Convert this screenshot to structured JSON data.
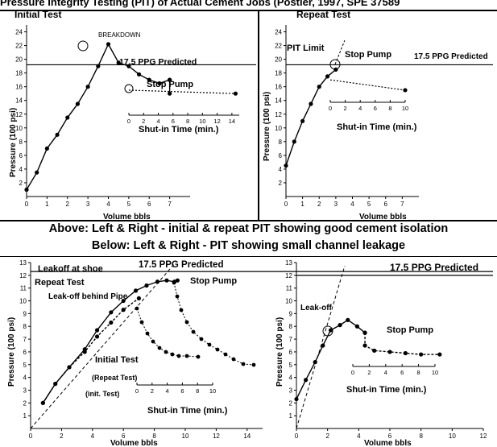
{
  "header": "Pressure Integrity Testing (PIT) of Actual Cement Jobs (Postler, 1997, SPE 37589",
  "captions": {
    "above": "Above: Left & Right - initial & repeat PIT showing good cement isolation",
    "below": "Below: Left & Right - PIT showing small channel leakage"
  },
  "chart_data": [
    {
      "id": "c1",
      "type": "line",
      "title": "Initial Test",
      "xlabel": "Volume bbls",
      "ylabel": "Pressure (100 psi)",
      "xlim": [
        0,
        8
      ],
      "ylim": [
        0,
        25
      ],
      "xticks": [
        0,
        1,
        2,
        3,
        4,
        5,
        6,
        7
      ],
      "yticks": [
        2,
        4,
        6,
        8,
        10,
        12,
        14,
        16,
        18,
        20,
        22,
        24
      ],
      "hline": {
        "y": 19.2,
        "label": "17.5 PPG Predicted"
      },
      "series": [
        {
          "x": [
            0,
            0.5,
            1,
            1.5,
            2,
            2.5,
            3,
            3.5,
            4,
            4.5,
            5,
            5.5,
            6,
            6.5,
            7
          ],
          "y": [
            1,
            3.5,
            7,
            9,
            11.5,
            13.5,
            16,
            19,
            22.2,
            19.5,
            19,
            17.8,
            17,
            16.5,
            17
          ]
        },
        {
          "x": [
            7,
            7
          ],
          "y": [
            17,
            15
          ]
        }
      ],
      "annotations": [
        "BREAKDOWN",
        "Stop Pump"
      ],
      "inset": {
        "xlabel": "Shut-in Time (min.)",
        "xlim": [
          0,
          15
        ],
        "xticks": [
          0,
          2,
          4,
          6,
          8,
          10,
          12,
          14
        ],
        "series": [
          {
            "x": [
              0,
              14.5
            ],
            "y": [
              15.5,
              15
            ]
          }
        ]
      }
    },
    {
      "id": "c2",
      "type": "line",
      "title": "Repeat Test",
      "xlabel": "Volume bbls",
      "ylabel": "Pressure (100 psi)",
      "xlim": [
        0,
        8
      ],
      "ylim": [
        0,
        25
      ],
      "xticks": [
        0,
        1,
        2,
        3,
        4,
        5,
        6,
        7
      ],
      "yticks": [
        2,
        4,
        6,
        8,
        10,
        12,
        14,
        16,
        18,
        20,
        22,
        24
      ],
      "hline": {
        "y": 19.2,
        "label": "17.5 PPG Predicted"
      },
      "series": [
        {
          "x": [
            0,
            0.5,
            1,
            1.5,
            2,
            2.5,
            3
          ],
          "y": [
            4.5,
            8,
            11,
            13.5,
            16,
            17.5,
            18.5
          ]
        }
      ],
      "annotations": [
        "PIT Limit",
        "Stop Pump"
      ],
      "inset": {
        "xlabel": "Shut-in Time (min.)",
        "xlim": [
          0,
          10
        ],
        "xticks": [
          0,
          2,
          4,
          6,
          8,
          10
        ],
        "series": [
          {
            "x": [
              0,
              10
            ],
            "y": [
              17,
              15.5
            ]
          }
        ]
      }
    },
    {
      "id": "c3",
      "type": "line",
      "xlabel": "Volume bbls",
      "ylabel": "Pressure (100 psi)",
      "xlim": [
        0,
        15
      ],
      "ylim": [
        0,
        13
      ],
      "xticks": [
        0,
        2,
        4,
        6,
        8,
        10,
        12,
        14
      ],
      "yticks": [
        1,
        2,
        3,
        4,
        5,
        6,
        7,
        8,
        9,
        10,
        11,
        12,
        13
      ],
      "hline": {
        "y": 12.3,
        "label": "17.5 PPG Predicted"
      },
      "series": [
        {
          "name": "Repeat Test",
          "x": [
            0.8,
            1.6,
            2.5,
            3.5,
            4.3,
            5.2,
            6,
            6.8,
            7.5,
            8.2,
            8.8,
            9.3,
            9.5
          ],
          "y": [
            2,
            3.5,
            4.8,
            6.2,
            7.7,
            9.1,
            10,
            10.8,
            11.2,
            11.5,
            11.6,
            11.5,
            11.6
          ]
        },
        {
          "name": "Initial Test",
          "x": [
            0.8,
            1.6,
            2.5,
            3.5,
            4.3,
            5.2,
            6,
            7
          ],
          "y": [
            2,
            3.5,
            4.8,
            6,
            7.2,
            8.3,
            9.3,
            10.2
          ]
        }
      ],
      "annotations": [
        "Leakoff at shoe",
        "Repeat Test",
        "Leak-off behind Pipe",
        "Initial Test",
        "Stop Pump"
      ],
      "inset_labels": [
        "(Repeat Test)",
        "(init. Test)"
      ],
      "inset": {
        "xlabel": "Shut-in Time (min.)",
        "xlim": [
          0,
          10
        ],
        "xticks": [
          0,
          2,
          4,
          6,
          8,
          10
        ]
      }
    },
    {
      "id": "c4",
      "type": "line",
      "xlabel": "Volume bbls",
      "ylabel": "Pressure (100 psi)",
      "xlim": [
        0,
        12
      ],
      "ylim": [
        0,
        13
      ],
      "xticks": [
        0,
        2,
        4,
        6,
        8,
        10,
        12
      ],
      "yticks": [
        1,
        2,
        3,
        4,
        5,
        6,
        7,
        8,
        9,
        10,
        11,
        12,
        13
      ],
      "hline": {
        "y": 12,
        "label": "17.5 PPG Predicted"
      },
      "series": [
        {
          "x": [
            0,
            0.6,
            1.2,
            1.7,
            2.2,
            2.8,
            3.3,
            3.9,
            4.4
          ],
          "y": [
            2.3,
            3.8,
            5.2,
            6.5,
            7.7,
            8.1,
            8.5,
            8,
            7.5
          ]
        },
        {
          "x": [
            4.4,
            4.4,
            5,
            6,
            7,
            8,
            9.2
          ],
          "y": [
            7.5,
            6.5,
            6.1,
            6,
            5.9,
            5.8,
            5.8
          ]
        }
      ],
      "annotations": [
        "Leak-off",
        "Stop Pump"
      ],
      "inset": {
        "xlabel": "Shut-in Time (min.)",
        "xlim": [
          0,
          10
        ],
        "xticks": [
          0,
          2,
          4,
          6,
          8,
          10
        ]
      }
    }
  ]
}
